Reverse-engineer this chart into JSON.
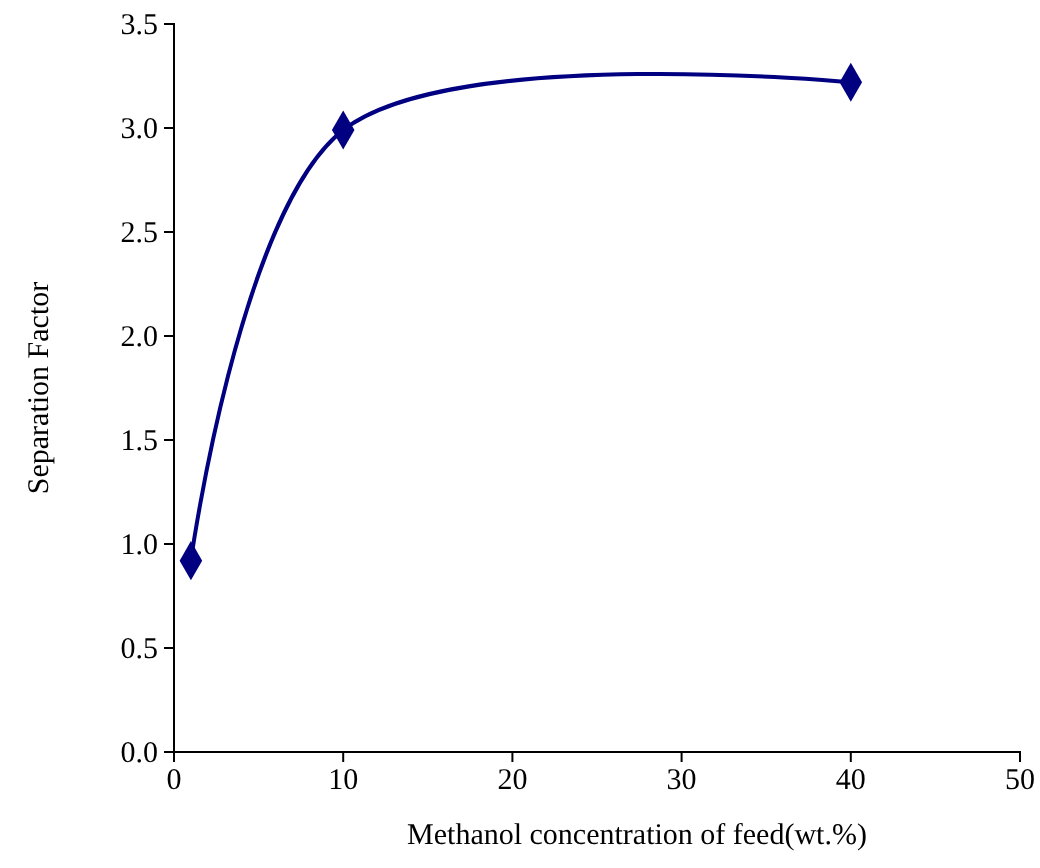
{
  "chart_data": {
    "type": "line",
    "xlabel": "Methanol concentration of feed(wt.%)",
    "ylabel": "Separation Factor",
    "x": [
      1,
      10,
      40
    ],
    "series": [
      {
        "color": "#000080",
        "values": [
          0.92,
          2.99,
          3.22
        ]
      }
    ],
    "xlim": [
      0,
      50
    ],
    "xticks": [
      0,
      10,
      20,
      30,
      40,
      50
    ],
    "ylim": [
      0,
      3.5
    ],
    "yticks": [
      {
        "value": 0,
        "label": "0.0"
      },
      {
        "value": 0.5,
        "label": "0.5"
      },
      {
        "value": 1,
        "label": "1.0"
      },
      {
        "value": 1.5,
        "label": "1.5"
      },
      {
        "value": 2,
        "label": "2.0"
      },
      {
        "value": 2.5,
        "label": "2.5"
      },
      {
        "value": 3,
        "label": "3.0"
      },
      {
        "value": 3.5,
        "label": "3.5"
      }
    ],
    "grid": false,
    "marker": "diamond",
    "line_style": "solid"
  }
}
